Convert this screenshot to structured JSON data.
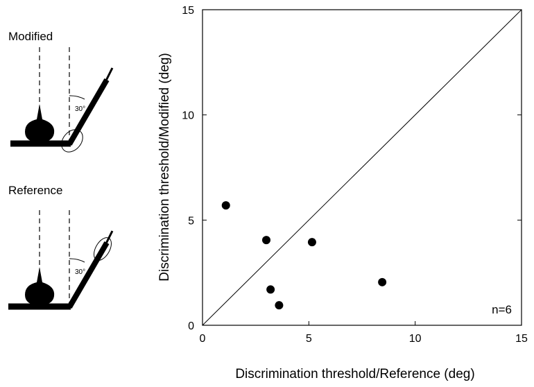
{
  "chart_data": {
    "type": "scatter",
    "x_label": "Discrimination threshold/Reference (deg)",
    "y_label": "Discrimination threshold/Modified (deg)",
    "annotation": "n=6",
    "x": [
      1.1,
      3.0,
      5.15,
      3.2,
      3.6,
      8.45
    ],
    "values": [
      5.7,
      4.05,
      3.95,
      1.7,
      0.95,
      2.05
    ],
    "color": "#000000",
    "xlim": [
      0,
      15
    ],
    "ylim": [
      0,
      15
    ],
    "xticks": [
      0,
      5,
      10,
      15
    ],
    "yticks": [
      0,
      5,
      10,
      15
    ],
    "identity_line": true
  },
  "diagram": {
    "top_label": "Modified",
    "top_angle": "30°",
    "bottom_label": "Reference",
    "bottom_angle": "30°"
  }
}
